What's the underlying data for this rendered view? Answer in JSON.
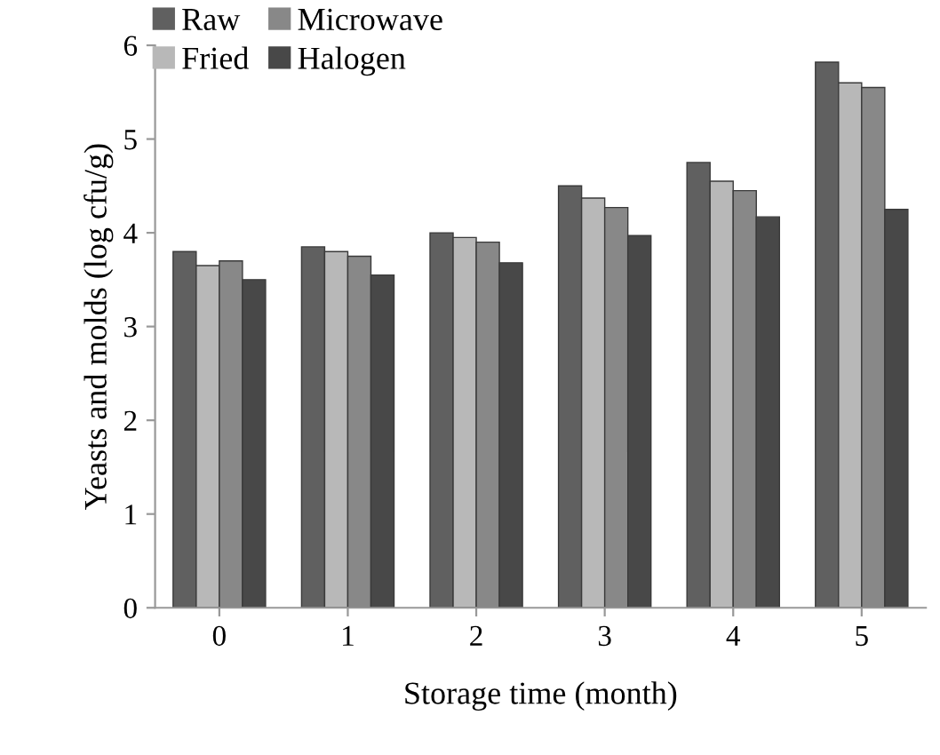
{
  "chart_data": {
    "type": "bar",
    "xlabel": "Storage time (month)",
    "ylabel": "Yeasts and molds (log cfu/g)",
    "categories": [
      "0",
      "1",
      "2",
      "3",
      "4",
      "5"
    ],
    "series": [
      {
        "name": "Raw",
        "color": "#606060",
        "values": [
          3.8,
          3.85,
          4.0,
          4.5,
          4.75,
          5.82
        ]
      },
      {
        "name": "Fried",
        "color": "#b8b8b8",
        "values": [
          3.65,
          3.8,
          3.95,
          4.37,
          4.55,
          5.6
        ]
      },
      {
        "name": "Microwave",
        "color": "#888888",
        "values": [
          3.7,
          3.75,
          3.9,
          4.27,
          4.45,
          5.55
        ]
      },
      {
        "name": "Halogen",
        "color": "#484848",
        "values": [
          3.5,
          3.55,
          3.68,
          3.97,
          4.17,
          4.25
        ]
      }
    ],
    "ylim": [
      0,
      6
    ],
    "yticks": [
      0,
      1,
      2,
      3,
      4,
      5,
      6
    ],
    "grid": false,
    "legend": "top left"
  }
}
